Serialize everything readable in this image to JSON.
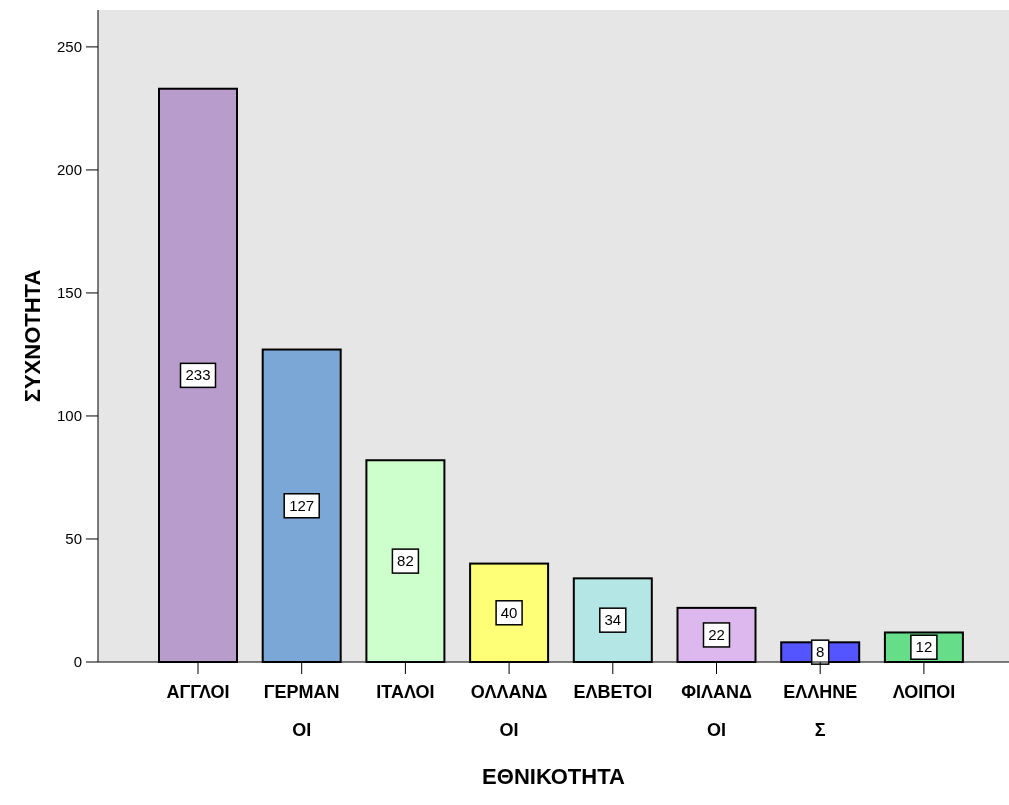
{
  "chart_data": {
    "type": "bar",
    "xlabel": "ΕΘΝΙΚΟΤΗΤΑ",
    "ylabel": "ΣΥΧΝΟΤΗΤΑ",
    "categories": [
      "ΑΓΓΛΟΙ",
      "ΓΕΡΜΑΝ\nΟΙ",
      "ΙΤΑΛΟΙ",
      "ΟΛΛΑΝΔ\nΟΙ",
      "ΕΛΒΕΤΟΙ",
      "ΦΙΛΑΝΔ\nΟΙ",
      "ΕΛΛΗΝΕ\nΣ",
      "ΛΟΙΠΟΙ"
    ],
    "values": [
      233,
      127,
      82,
      40,
      34,
      22,
      8,
      12
    ],
    "colors": [
      "#b89ccb",
      "#7ba7d6",
      "#ccffcc",
      "#ffff77",
      "#b4e6e6",
      "#ddb8ee",
      "#5555ff",
      "#66dd88"
    ],
    "ylim": [
      0,
      265
    ],
    "yticks": [
      0,
      50,
      100,
      150,
      200,
      250
    ],
    "data_labels": true,
    "grid": false
  }
}
